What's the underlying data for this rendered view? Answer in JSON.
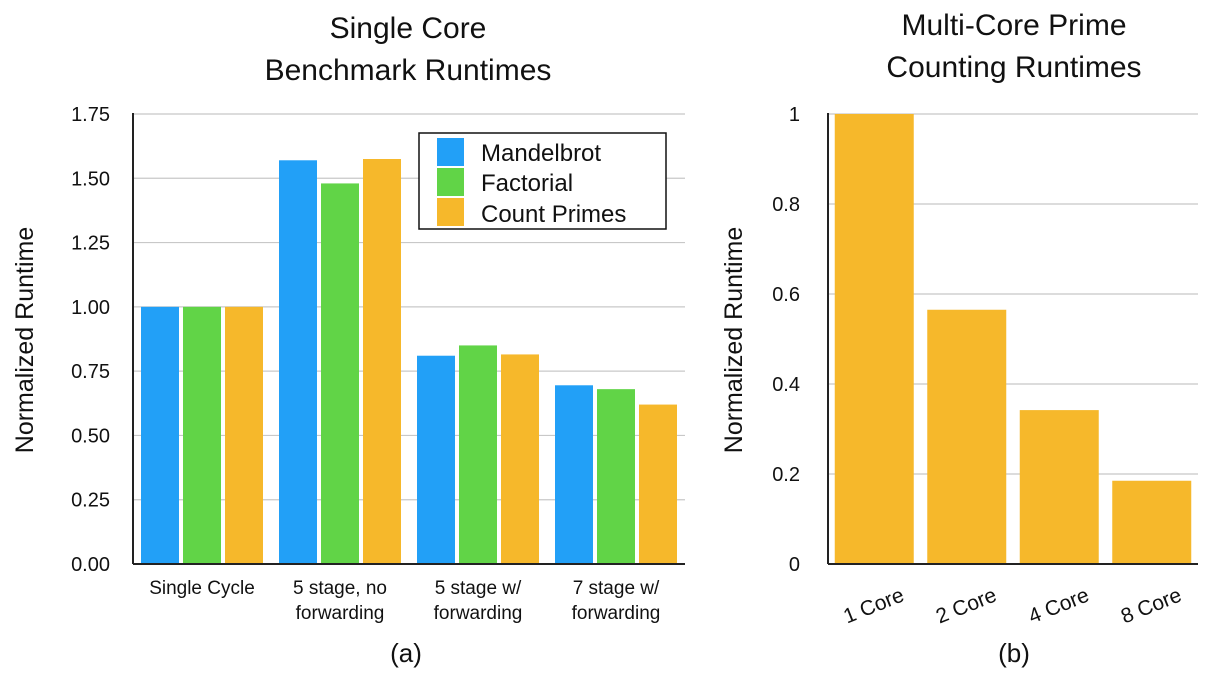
{
  "colors": {
    "mandelbrot": "#22a0f7",
    "factorial": "#61d447",
    "count_primes": "#f6b82b",
    "grid": "#c8c8c8",
    "axis": "#222222"
  },
  "chart_data": [
    {
      "type": "bar",
      "title": [
        "Single Core",
        "Benchmark Runtimes"
      ],
      "ylabel": "Normalized Runtime",
      "panel_label": "(a)",
      "ylim": [
        0,
        1.75
      ],
      "yticks": [
        "0.00",
        "0.25",
        "0.50",
        "0.75",
        "1.00",
        "1.25",
        "1.50",
        "1.75"
      ],
      "grid": true,
      "legend_position": "top-right",
      "categories": [
        [
          "Single Cycle"
        ],
        [
          "5 stage, no",
          "forwarding"
        ],
        [
          "5 stage w/",
          "forwarding"
        ],
        [
          "7 stage w/",
          "forwarding"
        ]
      ],
      "series": [
        {
          "name": "Mandelbrot",
          "color": "#22a0f7",
          "values": [
            1.0,
            1.57,
            0.81,
            0.695
          ]
        },
        {
          "name": "Factorial",
          "color": "#61d447",
          "values": [
            1.0,
            1.48,
            0.85,
            0.68
          ]
        },
        {
          "name": "Count Primes",
          "color": "#f6b82b",
          "values": [
            1.0,
            1.575,
            0.815,
            0.62
          ]
        }
      ]
    },
    {
      "type": "bar",
      "title": [
        "Multi-Core Prime",
        "Counting Runtimes"
      ],
      "ylabel": "Normalized Runtime",
      "panel_label": "(b)",
      "ylim": [
        0,
        1
      ],
      "yticks": [
        "0",
        "0.2",
        "0.4",
        "0.6",
        "0.8",
        "1"
      ],
      "grid": true,
      "categories": [
        "1 Core",
        "2 Core",
        "4 Core",
        "8 Core"
      ],
      "series": [
        {
          "color": "#f6b82b",
          "values": [
            1.0,
            0.565,
            0.342,
            0.185
          ]
        }
      ]
    }
  ]
}
